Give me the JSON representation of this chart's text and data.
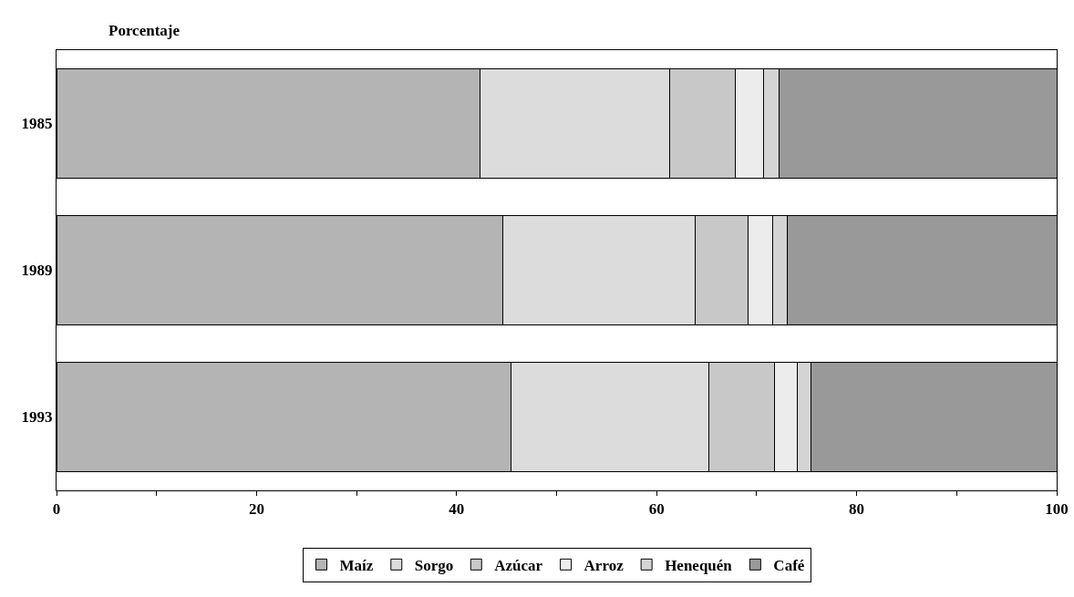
{
  "chart_data": {
    "type": "bar",
    "orientation": "horizontal",
    "stacked": true,
    "xlabel": "Porcentaje",
    "categories": [
      "1985",
      "1989",
      "1993"
    ],
    "series": [
      {
        "name": "Maíz",
        "color": "#b4b4b4",
        "values": [
          42.3,
          44.6,
          45.4
        ]
      },
      {
        "name": "Sorgo",
        "color": "#dcdcdc",
        "values": [
          19.0,
          19.3,
          19.8
        ]
      },
      {
        "name": "Azúcar",
        "color": "#c8c8c8",
        "values": [
          6.6,
          5.2,
          6.6
        ]
      },
      {
        "name": "Arroz",
        "color": "#ececec",
        "values": [
          2.8,
          2.5,
          2.3
        ]
      },
      {
        "name": "Henequén",
        "color": "#d4d4d4",
        "values": [
          1.5,
          1.5,
          1.3
        ]
      },
      {
        "name": "Café",
        "color": "#999999",
        "values": [
          27.8,
          26.9,
          24.6
        ]
      }
    ],
    "xlim": [
      0,
      100
    ],
    "xticks": [
      0,
      {
        "value": 10,
        "label": null
      },
      20,
      {
        "value": 30,
        "label": null
      },
      40,
      {
        "value": 50,
        "label": null
      },
      60,
      {
        "value": 70,
        "label": null
      },
      80,
      {
        "value": 90,
        "label": null
      },
      100
    ],
    "grid": false,
    "legend": "bottom"
  }
}
